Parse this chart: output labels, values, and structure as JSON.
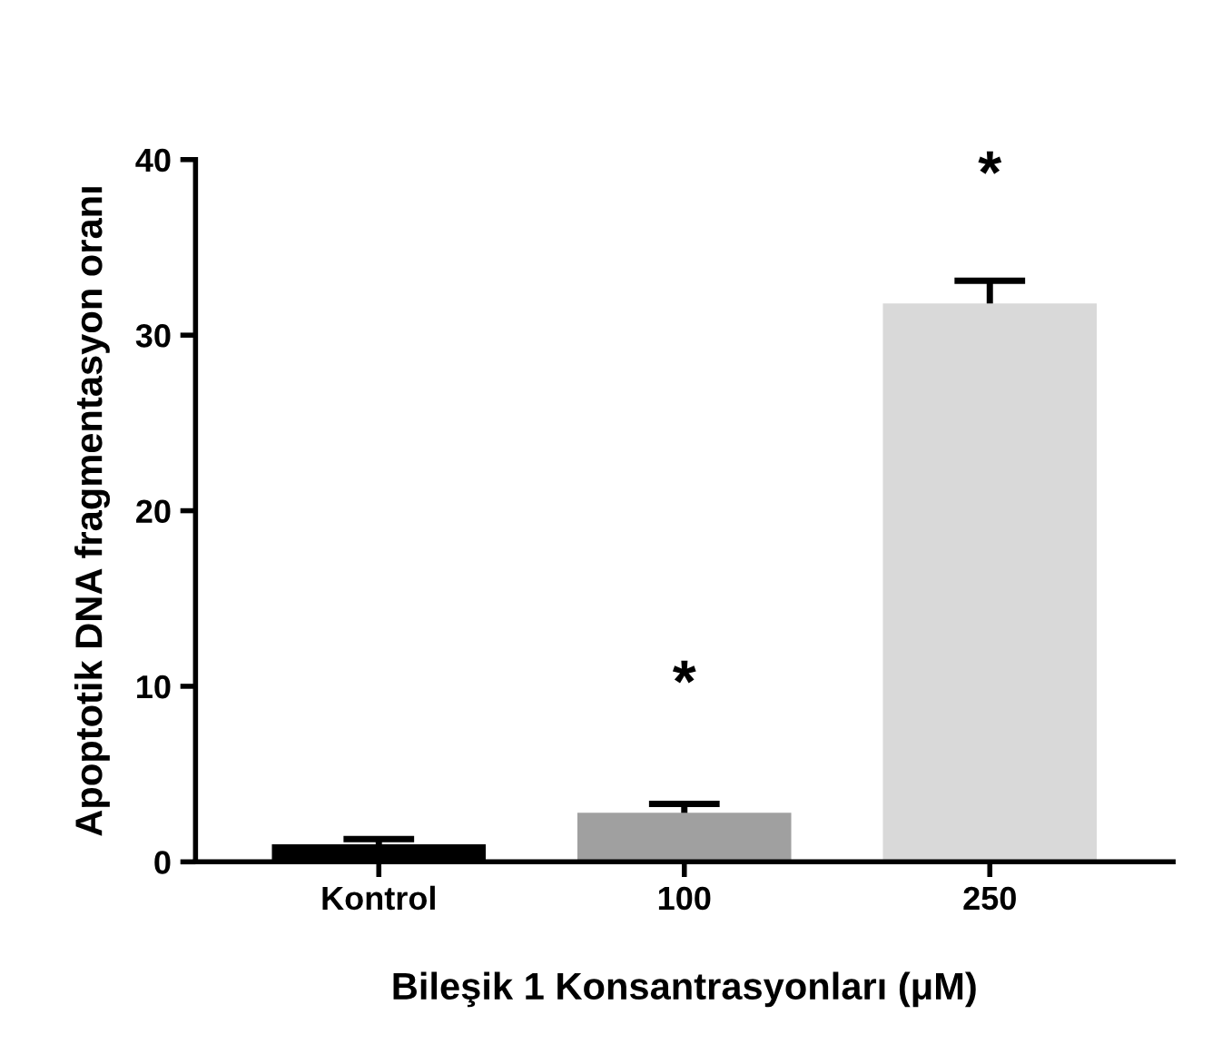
{
  "chart_data": {
    "type": "bar",
    "xlabel": "Bileşik 1 Konsantrasyonları (μM)",
    "ylabel": "Apoptotik DNA fragmentasyon oranı",
    "categories": [
      "Kontrol",
      "100",
      "250"
    ],
    "values": [
      1.0,
      2.8,
      31.8
    ],
    "errors": [
      0.3,
      0.5,
      1.3
    ],
    "colors": [
      "#000000",
      "#a0a0a0",
      "#d9d9d9"
    ],
    "ylim": [
      0,
      40
    ],
    "yticks": [
      0,
      10,
      20,
      30,
      40
    ],
    "grid": false,
    "annotations": [
      {
        "text": "*",
        "x": "100",
        "y": 2.8
      },
      {
        "text": "*",
        "x": "250",
        "y": 31.8
      }
    ]
  }
}
